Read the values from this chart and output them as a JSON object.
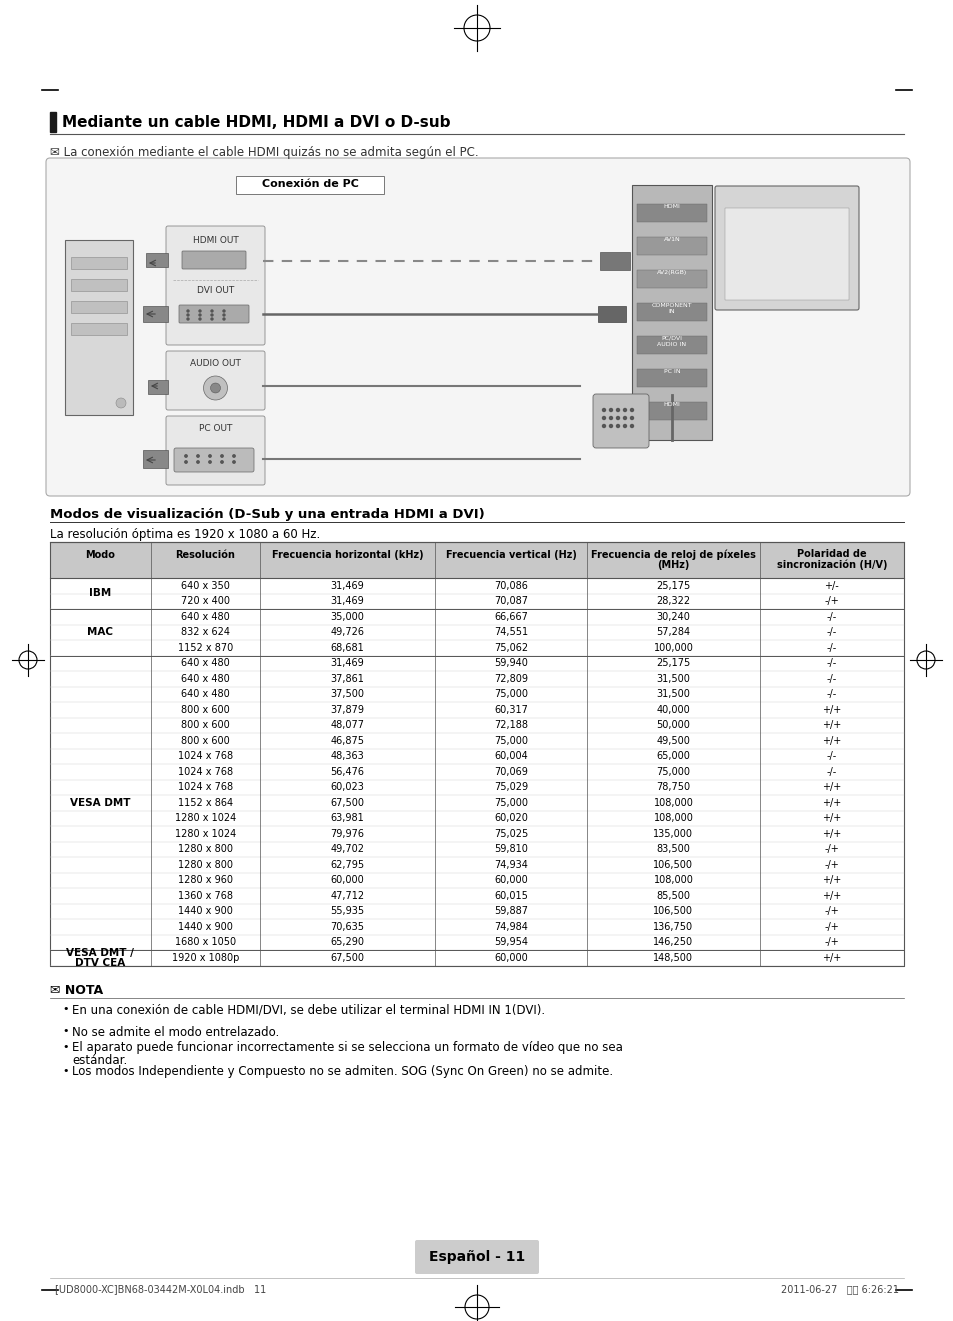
{
  "title": "Mediante un cable HDMI, HDMI a DVI o D-sub",
  "note1": "✉ La conexión mediante el cable HDMI quizás no se admita según el PC.",
  "section_title": "Modos de visualización (D-Sub y una entrada HDMI a DVI)",
  "section_subtitle": "La resolución óptima es 1920 x 1080 a 60 Hz.",
  "col_headers": [
    "Modo",
    "Resolución",
    "Frecuencia horizontal (kHz)",
    "Frecuencia vertical (Hz)",
    "Frecuencia de reloj de píxeles\n(MHz)",
    "Polaridad de\nsincronización (H/V)"
  ],
  "table_data": [
    [
      "IBM",
      "640 x 350",
      "31,469",
      "70,086",
      "25,175",
      "+/-"
    ],
    [
      "IBM",
      "720 x 400",
      "31,469",
      "70,087",
      "28,322",
      "-/+"
    ],
    [
      "MAC",
      "640 x 480",
      "35,000",
      "66,667",
      "30,240",
      "-/-"
    ],
    [
      "MAC",
      "832 x 624",
      "49,726",
      "74,551",
      "57,284",
      "-/-"
    ],
    [
      "MAC",
      "1152 x 870",
      "68,681",
      "75,062",
      "100,000",
      "-/-"
    ],
    [
      "VESA DMT",
      "640 x 480",
      "31,469",
      "59,940",
      "25,175",
      "-/-"
    ],
    [
      "VESA DMT",
      "640 x 480",
      "37,861",
      "72,809",
      "31,500",
      "-/-"
    ],
    [
      "VESA DMT",
      "640 x 480",
      "37,500",
      "75,000",
      "31,500",
      "-/-"
    ],
    [
      "VESA DMT",
      "800 x 600",
      "37,879",
      "60,317",
      "40,000",
      "+/+"
    ],
    [
      "VESA DMT",
      "800 x 600",
      "48,077",
      "72,188",
      "50,000",
      "+/+"
    ],
    [
      "VESA DMT",
      "800 x 600",
      "46,875",
      "75,000",
      "49,500",
      "+/+"
    ],
    [
      "VESA DMT",
      "1024 x 768",
      "48,363",
      "60,004",
      "65,000",
      "-/-"
    ],
    [
      "VESA DMT",
      "1024 x 768",
      "56,476",
      "70,069",
      "75,000",
      "-/-"
    ],
    [
      "VESA DMT",
      "1024 x 768",
      "60,023",
      "75,029",
      "78,750",
      "+/+"
    ],
    [
      "VESA DMT",
      "1152 x 864",
      "67,500",
      "75,000",
      "108,000",
      "+/+"
    ],
    [
      "VESA DMT",
      "1280 x 1024",
      "63,981",
      "60,020",
      "108,000",
      "+/+"
    ],
    [
      "VESA DMT",
      "1280 x 1024",
      "79,976",
      "75,025",
      "135,000",
      "+/+"
    ],
    [
      "VESA DMT",
      "1280 x 800",
      "49,702",
      "59,810",
      "83,500",
      "-/+"
    ],
    [
      "VESA DMT",
      "1280 x 800",
      "62,795",
      "74,934",
      "106,500",
      "-/+"
    ],
    [
      "VESA DMT",
      "1280 x 960",
      "60,000",
      "60,000",
      "108,000",
      "+/+"
    ],
    [
      "VESA DMT",
      "1360 x 768",
      "47,712",
      "60,015",
      "85,500",
      "+/+"
    ],
    [
      "VESA DMT",
      "1440 x 900",
      "55,935",
      "59,887",
      "106,500",
      "-/+"
    ],
    [
      "VESA DMT",
      "1440 x 900",
      "70,635",
      "74,984",
      "136,750",
      "-/+"
    ],
    [
      "VESA DMT",
      "1680 x 1050",
      "65,290",
      "59,954",
      "146,250",
      "-/+"
    ],
    [
      "VESA DMT /\nDTV CEA",
      "1920 x 1080p",
      "67,500",
      "60,000",
      "148,500",
      "+/+"
    ]
  ],
  "nota_title": "✉ NOTA",
  "nota_bullets": [
    "En una conexión de cable HDMI/DVI, se debe utilizar el terminal HDMI IN 1(DVI).",
    "No se admite el modo entrelazado.",
    "El aparato puede funcionar incorrectamente si se selecciona un formato de vídeo que no sea\nestándar.",
    "Los modos Independiente y Compuesto no se admiten. SOG (Sync On Green) no se admite."
  ],
  "footer_text": "Español - 11",
  "footer_meta": "[UD8000-XC]BN68-03442M-X0L04.indb   11",
  "footer_date": "2011-06-27   오후 6:26:21",
  "page_bg": "#ffffff"
}
